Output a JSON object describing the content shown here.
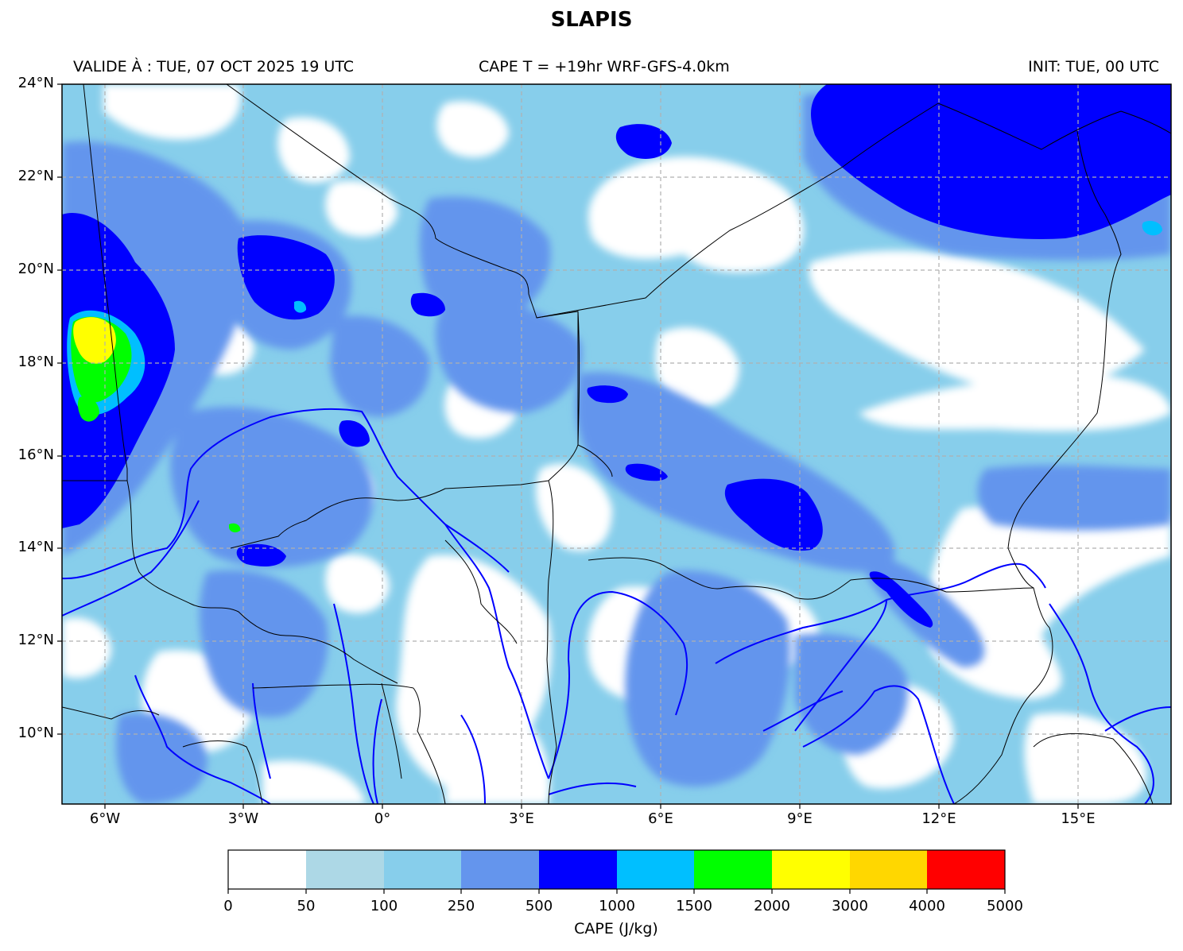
{
  "title": "SLAPIS",
  "subtitle_left": "VALIDE À : TUE, 07 OCT 2025 19 UTC",
  "subtitle_center": "CAPE T = +19hr WRF-GFS-4.0km",
  "subtitle_right": "INIT: TUE, 00 UTC",
  "map": {
    "lat_labels": [
      "24°N",
      "22°N",
      "20°N",
      "18°N",
      "16°N",
      "14°N",
      "12°N",
      "10°N"
    ],
    "lon_labels": [
      "6°W",
      "3°W",
      "0°",
      "3°E",
      "6°E",
      "9°E",
      "12°E",
      "15°E"
    ],
    "extent": {
      "lon_min": -6.9,
      "lon_max": 17.0,
      "lat_min": 8.5,
      "lat_max": 24.0
    },
    "gridlines": true,
    "field": "CAPE"
  },
  "colorbar": {
    "title": "CAPE (J/kg)",
    "ticks": [
      "0",
      "50",
      "100",
      "250",
      "500",
      "1000",
      "1500",
      "2000",
      "3000",
      "4000",
      "5000"
    ],
    "colors": [
      "#ffffff",
      "#add8e6",
      "#87ceeb",
      "#6495ed",
      "#0000ff",
      "#00bfff",
      "#00ff00",
      "#ffff00",
      "#ffd700",
      "#ff0000"
    ]
  },
  "palette": {
    "light": "#87ceeb",
    "mid": "#6495ed",
    "high": "#0000ff",
    "cyan": "#00bfff",
    "green": "#00ff00",
    "yellow": "#ffff00",
    "rivers": "#0000ff",
    "borders": "#000000"
  }
}
